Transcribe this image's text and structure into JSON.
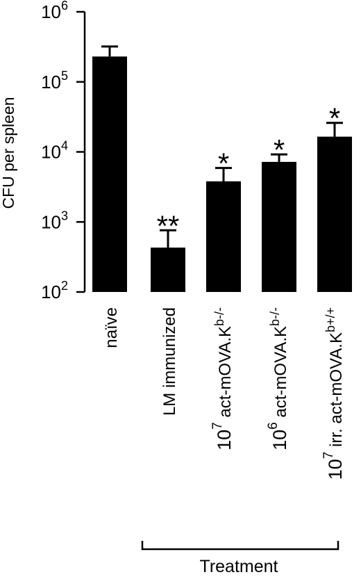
{
  "chart_data": {
    "type": "bar",
    "title": "",
    "xlabel": "Treatment",
    "ylabel": "CFU per spleen",
    "yscale": "log",
    "ylim": [
      100,
      1000000
    ],
    "yticks": [
      {
        "value": 100,
        "base": "10",
        "exp": "2"
      },
      {
        "value": 1000,
        "base": "10",
        "exp": "3"
      },
      {
        "value": 10000,
        "base": "10",
        "exp": "4"
      },
      {
        "value": 100000,
        "base": "10",
        "exp": "5"
      },
      {
        "value": 1000000,
        "base": "10",
        "exp": "6"
      }
    ],
    "categories": [
      {
        "label": "naïve"
      },
      {
        "label": "LM immunized"
      },
      {
        "prefix": "10",
        "prefix_sup": "7",
        "label": " act-mOVA.K",
        "label_sup": "b-/-"
      },
      {
        "prefix": "10",
        "prefix_sup": "6",
        "label": " act-mOVA.K",
        "label_sup": "b-/-"
      },
      {
        "prefix": "10",
        "prefix_sup": "7",
        "label": " irr. act-mOVA.K",
        "label_sup": "b+/+"
      }
    ],
    "values": [
      230000,
      430,
      3800,
      7200,
      16500
    ],
    "error_upper": [
      320000,
      760,
      5900,
      9200,
      26000
    ],
    "significance": [
      "",
      "**",
      "*",
      "*",
      "*"
    ],
    "grid": false,
    "color": "#000000"
  }
}
